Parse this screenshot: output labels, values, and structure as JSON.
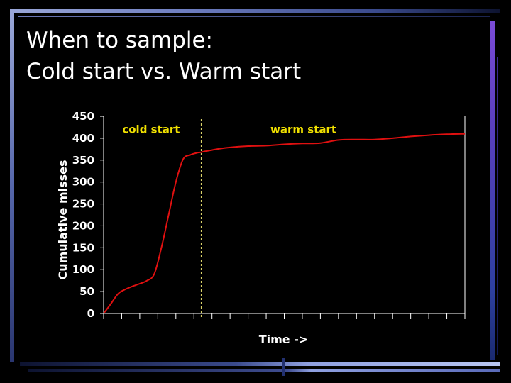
{
  "slide": {
    "title_lines": [
      "When to sample:",
      "Cold start vs. Warm start"
    ]
  },
  "colors": {
    "background": "#000000",
    "series": "#e01010",
    "annotation": "#f0e000",
    "text": "#ffffff"
  },
  "chart_data": {
    "type": "line",
    "title": "",
    "xlabel": "Time ->",
    "ylabel": "Cumulative misses",
    "ylim": [
      0,
      450
    ],
    "yticks": [
      0,
      50,
      100,
      150,
      200,
      250,
      300,
      350,
      400,
      450
    ],
    "xlim": [
      0,
      100
    ],
    "x_tick_count": 21,
    "grid": false,
    "legend": "none",
    "series": [
      {
        "x": [
          0,
          2,
          4,
          6,
          8,
          10,
          12,
          14,
          16,
          18,
          20,
          22,
          24,
          26,
          27,
          28,
          30,
          32,
          35,
          40,
          45,
          50,
          55,
          60,
          65,
          70,
          75,
          80,
          85,
          90,
          95,
          100
        ],
        "y": [
          0,
          22,
          45,
          55,
          62,
          68,
          75,
          90,
          150,
          225,
          300,
          352,
          362,
          367,
          368,
          370,
          373,
          376,
          379,
          382,
          383,
          386,
          388,
          389,
          396,
          397,
          397,
          400,
          404,
          407,
          409,
          410
        ]
      }
    ],
    "divider_x": 27,
    "annotations": [
      {
        "text": "cold start",
        "x": 4,
        "y": 420
      },
      {
        "text": "warm start",
        "x": 45,
        "y": 420
      }
    ]
  }
}
